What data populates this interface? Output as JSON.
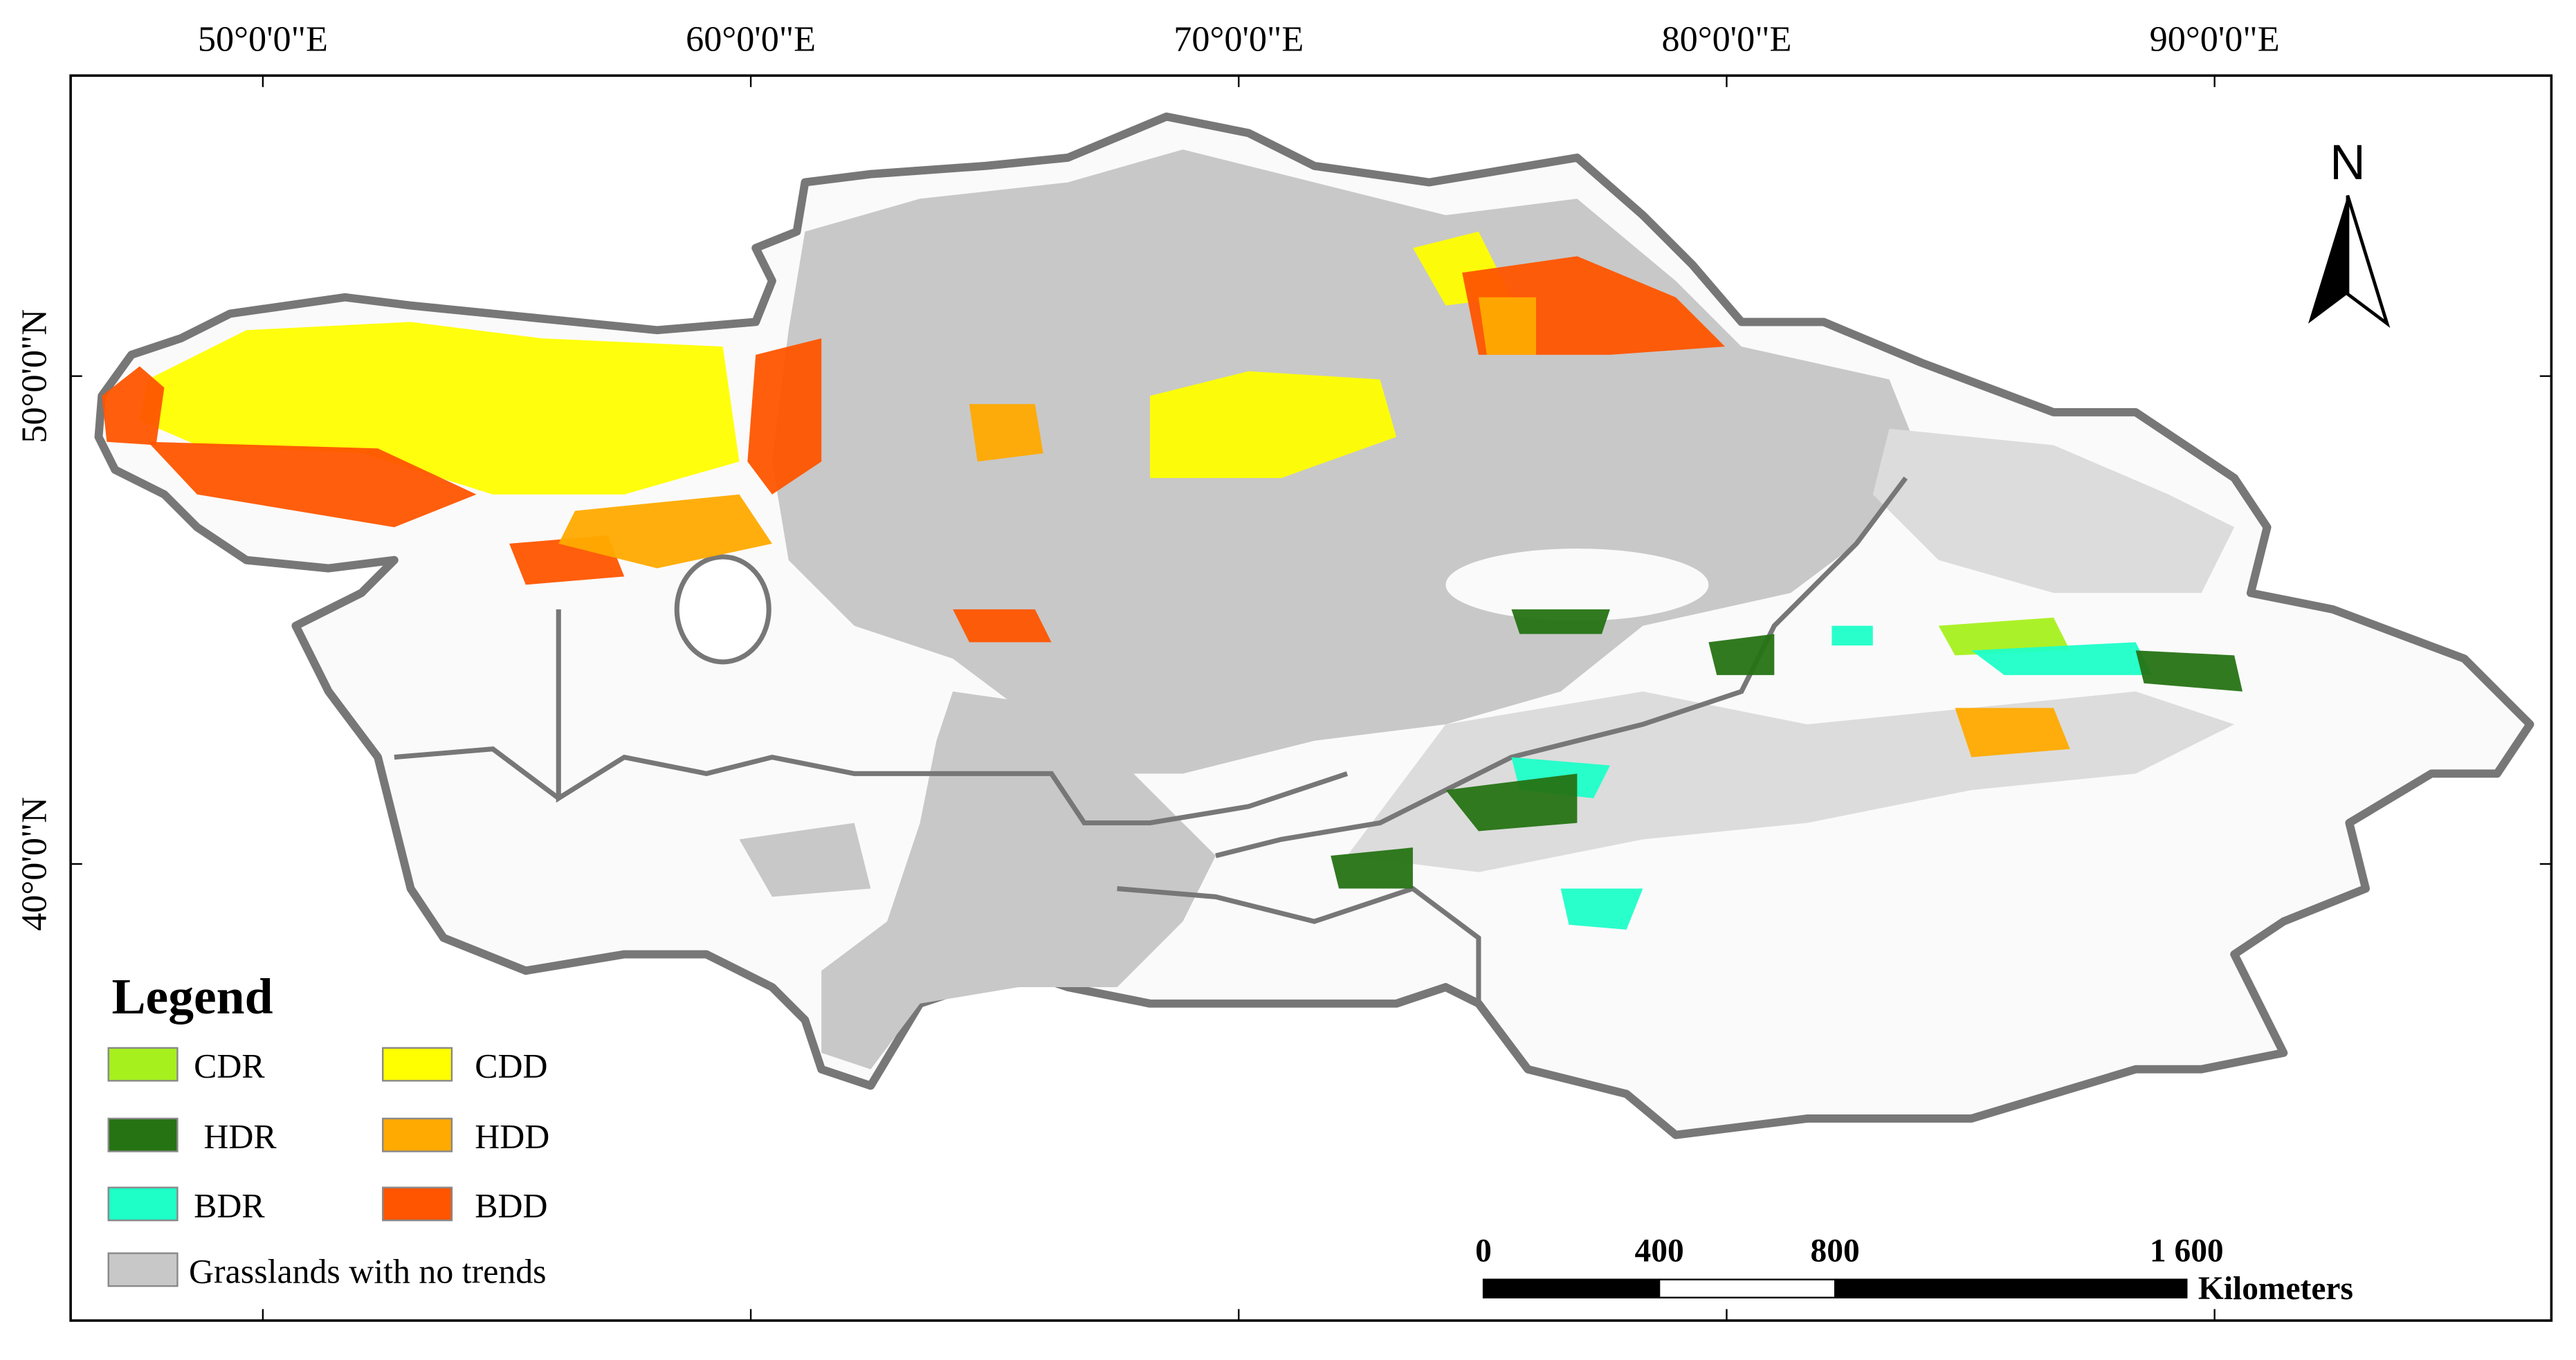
{
  "lon_ticks": [
    {
      "value": 50,
      "label": "50°0'0\"E"
    },
    {
      "value": 60,
      "label": "60°0'0\"E"
    },
    {
      "value": 70,
      "label": "70°0'0\"E"
    },
    {
      "value": 80,
      "label": "80°0'0\"E"
    },
    {
      "value": 90,
      "label": "90°0'0\"E"
    }
  ],
  "lat_ticks": [
    {
      "value": 50,
      "label": "50°0'0\"N"
    },
    {
      "value": 40,
      "label": "40°0'0\"N"
    }
  ],
  "north_label": "N",
  "legend": {
    "title": "Legend",
    "items": [
      {
        "label": "CDR",
        "color": "#a6f01e"
      },
      {
        "label": "HDR",
        "color": "#267314"
      },
      {
        "label": "BDR",
        "color": "#1effc8"
      },
      {
        "label": "CDD",
        "color": "#ffff00"
      },
      {
        "label": "HDD",
        "color": "#ffaa00"
      },
      {
        "label": "BDD",
        "color": "#ff5500"
      },
      {
        "label": "Grasslands with no trends",
        "color": "#c8c8c8"
      }
    ]
  },
  "scale_bar": {
    "ticks": [
      0,
      400,
      800,
      {
        "value": 1600,
        "label": "1 600"
      }
    ],
    "unit": "Kilometers"
  }
}
